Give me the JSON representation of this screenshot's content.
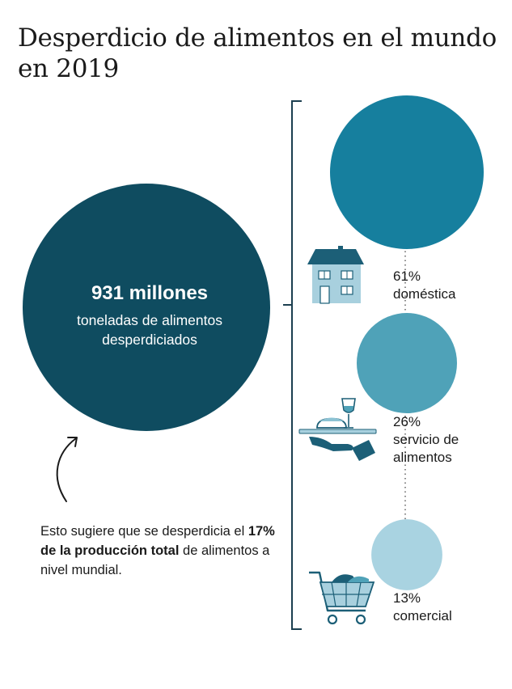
{
  "title": "Desperdicio de alimentos en el mundo en 2019",
  "total": {
    "value": "931 millones",
    "label": "toneladas de alimentos desperdiciados"
  },
  "note": {
    "before": "Esto sugiere que se desperdicia el ",
    "bold": "17% de la producción total",
    "after": " de alimentos a nivel mundial."
  },
  "colors": {
    "total": "#0f4c60",
    "domestica": "#167f9e",
    "servicio": "#4fa2b8",
    "comercial": "#a9d3e1",
    "bracket": "#1c3f50",
    "icon_dark": "#1c5f77",
    "icon_light": "#a8d0de"
  },
  "chart_data": {
    "type": "bubble",
    "total": {
      "value": 931,
      "unit": "millones de toneladas"
    },
    "categories": [
      "doméstica",
      "servicio de alimentos",
      "comercial"
    ],
    "values": [
      61,
      26,
      13
    ],
    "labels": [
      {
        "pct": "61%",
        "name_lines": [
          "doméstica"
        ],
        "icon": "house-icon"
      },
      {
        "pct": "26%",
        "name_lines": [
          "servicio de",
          "alimentos"
        ],
        "icon": "serving-tray-icon"
      },
      {
        "pct": "13%",
        "name_lines": [
          "comercial"
        ],
        "icon": "shopping-cart-icon"
      }
    ]
  }
}
